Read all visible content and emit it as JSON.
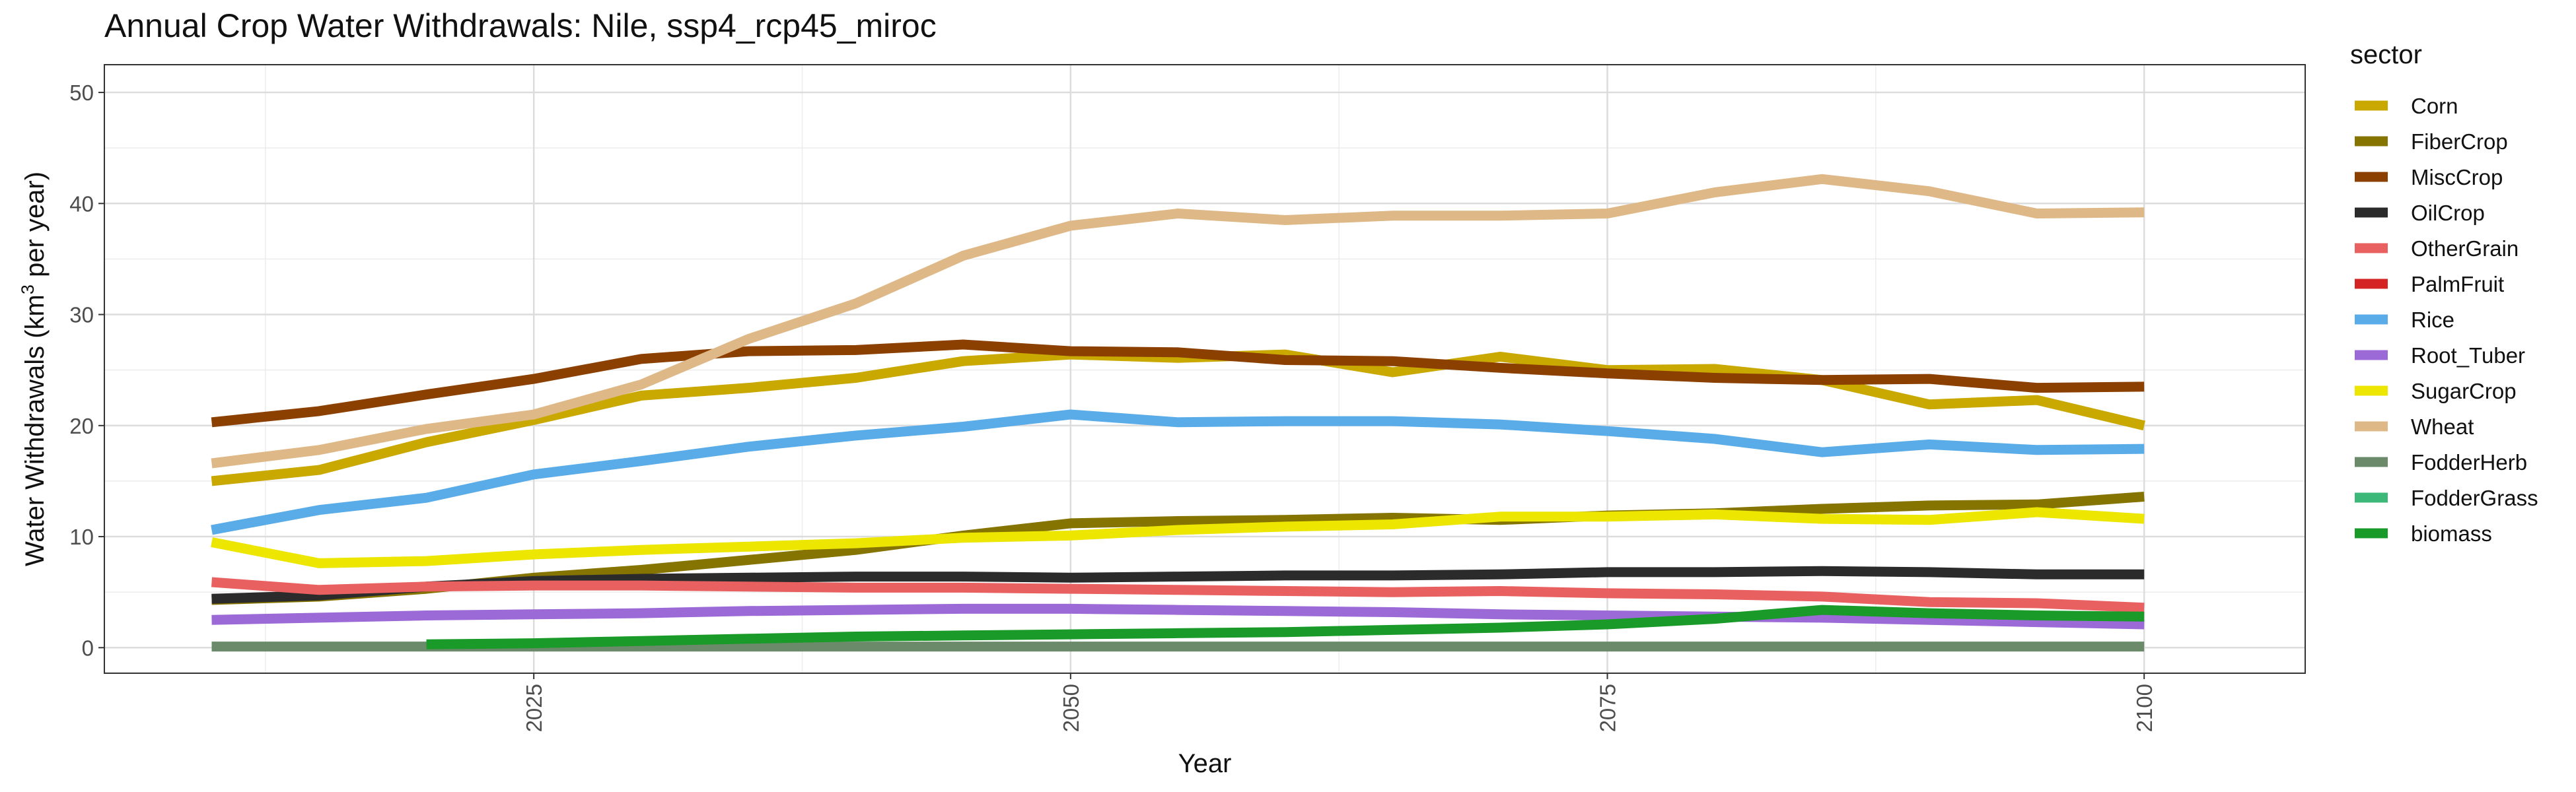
{
  "chart_data": {
    "type": "line",
    "title": "Annual Crop Water Withdrawals: Nile, ssp4_rcp45_miroc",
    "xlabel": "Year",
    "ylabel": "Water Withdrawals (km³ per year)",
    "ylabel_parts": {
      "before": "Water Withdrawals (km",
      "sup": "3",
      "after": " per year)"
    },
    "xlim": [
      2005,
      2107.5
    ],
    "ylim": [
      -2.3,
      52.5
    ],
    "xticks": [
      2025,
      2050,
      2075,
      2100
    ],
    "yticks": [
      0,
      10,
      20,
      30,
      40,
      50
    ],
    "grid": true,
    "legend_position": "right",
    "legend_title": "sector",
    "x": [
      2010,
      2015,
      2020,
      2025,
      2030,
      2035,
      2040,
      2045,
      2050,
      2055,
      2060,
      2065,
      2070,
      2075,
      2080,
      2085,
      2090,
      2095,
      2100
    ],
    "series": [
      {
        "name": "Corn",
        "color": "#C9A800",
        "values": [
          15.0,
          16.0,
          18.5,
          20.5,
          22.7,
          23.4,
          24.3,
          25.8,
          26.4,
          26.1,
          26.4,
          24.8,
          26.2,
          25.0,
          25.1,
          24.1,
          21.9,
          22.3,
          20.0
        ]
      },
      {
        "name": "FiberCrop",
        "color": "#857400",
        "values": [
          4.3,
          4.6,
          5.3,
          6.3,
          7.0,
          7.9,
          8.8,
          10.1,
          11.2,
          11.4,
          11.5,
          11.7,
          11.5,
          11.9,
          12.1,
          12.5,
          12.8,
          12.9,
          13.6
        ]
      },
      {
        "name": "MiscCrop",
        "color": "#8B4000",
        "values": [
          20.3,
          21.3,
          22.8,
          24.2,
          26.0,
          26.7,
          26.8,
          27.3,
          26.7,
          26.6,
          25.9,
          25.8,
          25.2,
          24.7,
          24.3,
          24.1,
          24.2,
          23.4,
          23.5
        ]
      },
      {
        "name": "OilCrop",
        "color": "#2B2B2B",
        "values": [
          4.4,
          4.7,
          5.5,
          6.0,
          6.2,
          6.3,
          6.4,
          6.4,
          6.3,
          6.4,
          6.5,
          6.5,
          6.6,
          6.8,
          6.8,
          6.9,
          6.8,
          6.6,
          6.6
        ]
      },
      {
        "name": "OtherGrain",
        "color": "#E8605F",
        "values": [
          5.9,
          5.2,
          5.5,
          5.6,
          5.6,
          5.5,
          5.4,
          5.4,
          5.3,
          5.2,
          5.1,
          5.0,
          5.1,
          4.9,
          4.8,
          4.6,
          4.1,
          4.0,
          3.6
        ]
      },
      {
        "name": "PalmFruit",
        "color": "#D42424",
        "values": [
          null,
          null,
          null,
          null,
          null,
          null,
          null,
          null,
          null,
          null,
          null,
          null,
          null,
          null,
          null,
          null,
          null,
          null,
          null
        ]
      },
      {
        "name": "Rice",
        "color": "#5AACE8",
        "values": [
          10.6,
          12.4,
          13.5,
          15.6,
          16.8,
          18.1,
          19.1,
          19.9,
          21.0,
          20.3,
          20.4,
          20.4,
          20.1,
          19.5,
          18.8,
          17.6,
          18.3,
          17.8,
          17.9
        ]
      },
      {
        "name": "Root_Tuber",
        "color": "#9B6AD6",
        "values": [
          2.5,
          2.7,
          2.9,
          3.0,
          3.1,
          3.3,
          3.4,
          3.5,
          3.5,
          3.4,
          3.3,
          3.2,
          3.0,
          2.9,
          2.8,
          2.7,
          2.5,
          2.3,
          2.1
        ]
      },
      {
        "name": "SugarCrop",
        "color": "#ECE600",
        "values": [
          9.5,
          7.6,
          7.8,
          8.4,
          8.8,
          9.1,
          9.4,
          9.9,
          10.1,
          10.6,
          10.9,
          11.1,
          11.8,
          11.8,
          12.0,
          11.6,
          11.5,
          12.2,
          11.6
        ]
      },
      {
        "name": "Wheat",
        "color": "#DEB887",
        "values": [
          16.6,
          17.8,
          19.7,
          21.0,
          23.7,
          27.8,
          31.0,
          35.3,
          38.0,
          39.1,
          38.5,
          38.9,
          38.9,
          39.1,
          41.0,
          42.2,
          41.1,
          39.1,
          39.2
        ]
      },
      {
        "name": "FodderHerb",
        "color": "#6A8A6A",
        "values": [
          0.1,
          0.1,
          0.1,
          0.1,
          0.1,
          0.1,
          0.1,
          0.1,
          0.1,
          0.1,
          0.1,
          0.1,
          0.1,
          0.1,
          0.1,
          0.1,
          0.1,
          0.1,
          0.1
        ]
      },
      {
        "name": "FodderGrass",
        "color": "#3CB878",
        "values": [
          null,
          null,
          null,
          null,
          null,
          null,
          null,
          null,
          null,
          null,
          null,
          null,
          null,
          null,
          null,
          null,
          null,
          null,
          null
        ]
      },
      {
        "name": "biomass",
        "color": "#1A9A28",
        "values": [
          null,
          null,
          0.3,
          0.4,
          0.6,
          0.8,
          1.0,
          1.1,
          1.2,
          1.3,
          1.4,
          1.6,
          1.8,
          2.1,
          2.6,
          3.4,
          3.1,
          2.9,
          2.8
        ]
      }
    ]
  }
}
